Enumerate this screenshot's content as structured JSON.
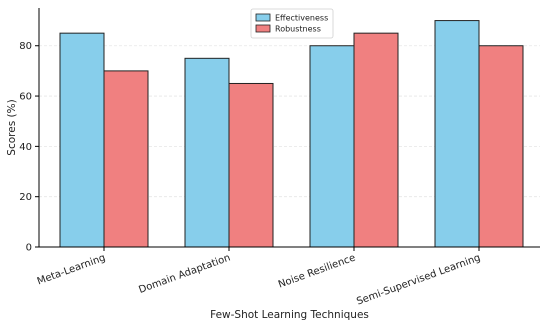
{
  "chart_data": {
    "type": "bar",
    "title": "",
    "xlabel": "Few-Shot Learning Techniques",
    "ylabel": "Scores (%)",
    "categories": [
      "Meta-Learning",
      "Domain Adaptation",
      "Noise Resilience",
      "Semi-Supervised Learning"
    ],
    "series": [
      {
        "name": "Effectiveness",
        "values": [
          85,
          75,
          80,
          90
        ],
        "color": "#87ceeb"
      },
      {
        "name": "Robustness",
        "values": [
          70,
          65,
          85,
          80
        ],
        "color": "#f08080"
      }
    ],
    "ylim": [
      0,
      95
    ],
    "yticks": [
      0,
      20,
      40,
      60,
      80
    ],
    "grid": "horizontal",
    "legend": "top-center"
  }
}
